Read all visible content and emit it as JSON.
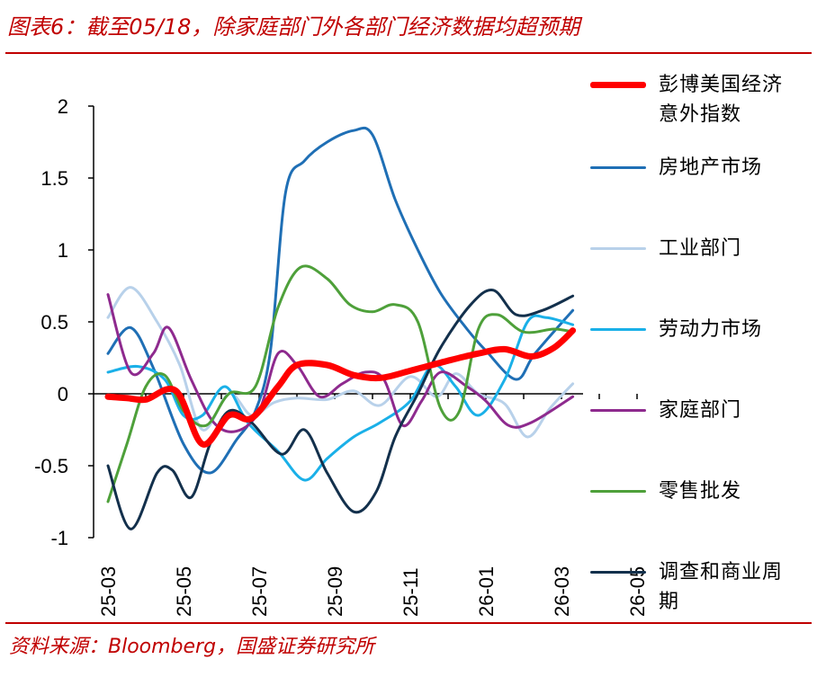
{
  "title": "图表6：截至05/18，除家庭部门外各部门经济数据均超预期",
  "source": "资料来源：Bloomberg，国盛证券研究所",
  "chart_data": {
    "type": "line",
    "x": [
      "25-03",
      "25-04",
      "25-05",
      "25-06",
      "25-07",
      "25-08",
      "25-09",
      "25-10",
      "25-11",
      "25-12",
      "26-01",
      "26-02",
      "26-03",
      "26-04",
      "26-05"
    ],
    "xticks": [
      "25-03",
      "25-05",
      "25-07",
      "25-09",
      "25-11",
      "26-01",
      "26-03",
      "26-05"
    ],
    "ylim": [
      -1,
      2
    ],
    "yticks": [
      "-1",
      "-0.5",
      "0",
      "0.5",
      "1",
      "1.5",
      "2"
    ],
    "grid": false,
    "legend_position": "right",
    "series": [
      {
        "name": "彭博美国经济意外指数",
        "color": "#ff0000",
        "width": 7,
        "points": [
          [
            0,
            -0.02
          ],
          [
            0.5,
            -0.03
          ],
          [
            1,
            -0.04
          ],
          [
            1.8,
            0.02
          ],
          [
            2.5,
            -0.35
          ],
          [
            3.2,
            -0.15
          ],
          [
            3.8,
            -0.17
          ],
          [
            4.5,
            0.05
          ],
          [
            5,
            0.2
          ],
          [
            5.8,
            0.2
          ],
          [
            6.5,
            0.13
          ],
          [
            7.2,
            0.11
          ],
          [
            8,
            0.16
          ],
          [
            9,
            0.23
          ],
          [
            9.8,
            0.28
          ],
          [
            10.5,
            0.31
          ],
          [
            11.2,
            0.26
          ],
          [
            11.8,
            0.32
          ],
          [
            12.3,
            0.44
          ]
        ]
      },
      {
        "name": "房地产市场",
        "color": "#1f6fb5",
        "width": 3,
        "points": [
          [
            0,
            0.28
          ],
          [
            0.6,
            0.46
          ],
          [
            1.2,
            0.18
          ],
          [
            2,
            -0.35
          ],
          [
            2.7,
            -0.55
          ],
          [
            3.4,
            -0.32
          ],
          [
            3.9,
            -0.12
          ],
          [
            4.3,
            0.3
          ],
          [
            4.7,
            1.4
          ],
          [
            5.2,
            1.62
          ],
          [
            5.8,
            1.75
          ],
          [
            6.5,
            1.83
          ],
          [
            7,
            1.8
          ],
          [
            7.6,
            1.35
          ],
          [
            8.2,
            1.0
          ],
          [
            8.8,
            0.7
          ],
          [
            9.5,
            0.45
          ],
          [
            10,
            0.3
          ],
          [
            10.8,
            0.1
          ],
          [
            11.3,
            0.28
          ],
          [
            12.3,
            0.58
          ]
        ]
      },
      {
        "name": "工业部门",
        "color": "#b8d1ea",
        "width": 3,
        "points": [
          [
            0,
            0.53
          ],
          [
            0.6,
            0.74
          ],
          [
            1.3,
            0.5
          ],
          [
            1.9,
            0.2
          ],
          [
            2.5,
            -0.25
          ],
          [
            3.2,
            0.0
          ],
          [
            3.8,
            -0.15
          ],
          [
            4.4,
            -0.06
          ],
          [
            5,
            -0.03
          ],
          [
            5.8,
            -0.04
          ],
          [
            6.5,
            0.02
          ],
          [
            7.2,
            -0.08
          ],
          [
            8,
            0.12
          ],
          [
            8.7,
            -0.02
          ],
          [
            9.2,
            0.14
          ],
          [
            9.8,
            0.0
          ],
          [
            10.5,
            -0.07
          ],
          [
            11.1,
            -0.3
          ],
          [
            11.7,
            -0.1
          ],
          [
            12.3,
            0.07
          ]
        ]
      },
      {
        "name": "劳动力市场",
        "color": "#1ab0e8",
        "width": 3,
        "points": [
          [
            0,
            0.15
          ],
          [
            0.8,
            0.19
          ],
          [
            1.5,
            0.1
          ],
          [
            2,
            -0.15
          ],
          [
            2.5,
            -0.15
          ],
          [
            3.1,
            0.05
          ],
          [
            3.7,
            -0.2
          ],
          [
            4.5,
            -0.4
          ],
          [
            5.2,
            -0.6
          ],
          [
            5.8,
            -0.45
          ],
          [
            6.5,
            -0.3
          ],
          [
            7.2,
            -0.2
          ],
          [
            8,
            -0.05
          ],
          [
            8.6,
            0.2
          ],
          [
            9.2,
            0.05
          ],
          [
            9.8,
            -0.15
          ],
          [
            10.5,
            0.1
          ],
          [
            11.1,
            0.5
          ],
          [
            11.6,
            0.53
          ],
          [
            12.3,
            0.48
          ]
        ]
      },
      {
        "name": "家庭部门",
        "color": "#8e2a8e",
        "width": 3,
        "points": [
          [
            0,
            0.69
          ],
          [
            0.6,
            0.15
          ],
          [
            1.2,
            0.28
          ],
          [
            1.6,
            0.46
          ],
          [
            2.2,
            0.1
          ],
          [
            2.8,
            -0.2
          ],
          [
            3.4,
            -0.26
          ],
          [
            4,
            -0.12
          ],
          [
            4.5,
            0.28
          ],
          [
            5,
            0.2
          ],
          [
            5.6,
            -0.02
          ],
          [
            6.2,
            0.07
          ],
          [
            6.8,
            0.15
          ],
          [
            7.3,
            0.1
          ],
          [
            7.8,
            -0.22
          ],
          [
            8.3,
            -0.05
          ],
          [
            8.8,
            0.15
          ],
          [
            9.5,
            0.05
          ],
          [
            10,
            -0.05
          ],
          [
            10.6,
            -0.22
          ],
          [
            11.2,
            -0.2
          ],
          [
            12.3,
            -0.02
          ]
        ]
      },
      {
        "name": "零售批发",
        "color": "#4ea03a",
        "width": 3,
        "points": [
          [
            0,
            -0.75
          ],
          [
            0.5,
            -0.35
          ],
          [
            1,
            0.05
          ],
          [
            1.5,
            0.13
          ],
          [
            2,
            -0.12
          ],
          [
            2.6,
            -0.22
          ],
          [
            3.2,
            0.0
          ],
          [
            3.9,
            0.05
          ],
          [
            4.5,
            0.6
          ],
          [
            5.1,
            0.88
          ],
          [
            5.8,
            0.8
          ],
          [
            6.4,
            0.62
          ],
          [
            7,
            0.57
          ],
          [
            7.6,
            0.62
          ],
          [
            8.2,
            0.5
          ],
          [
            8.8,
            -0.1
          ],
          [
            9.3,
            -0.12
          ],
          [
            9.8,
            0.45
          ],
          [
            10.3,
            0.55
          ],
          [
            11,
            0.43
          ],
          [
            11.8,
            0.45
          ],
          [
            12.3,
            0.43
          ]
        ]
      },
      {
        "name": "调查和商业周期",
        "color": "#13304c",
        "width": 3,
        "points": [
          [
            0,
            -0.5
          ],
          [
            0.6,
            -0.94
          ],
          [
            1.3,
            -0.55
          ],
          [
            1.7,
            -0.53
          ],
          [
            2.2,
            -0.72
          ],
          [
            2.7,
            -0.35
          ],
          [
            3.2,
            -0.12
          ],
          [
            3.8,
            -0.2
          ],
          [
            4.6,
            -0.42
          ],
          [
            5.2,
            -0.25
          ],
          [
            5.8,
            -0.55
          ],
          [
            6.5,
            -0.82
          ],
          [
            7.1,
            -0.68
          ],
          [
            7.6,
            -0.3
          ],
          [
            8.2,
            0.0
          ],
          [
            8.8,
            0.32
          ],
          [
            9.6,
            0.62
          ],
          [
            10.2,
            0.72
          ],
          [
            10.8,
            0.55
          ],
          [
            11.5,
            0.58
          ],
          [
            12.3,
            0.68
          ]
        ]
      }
    ]
  }
}
